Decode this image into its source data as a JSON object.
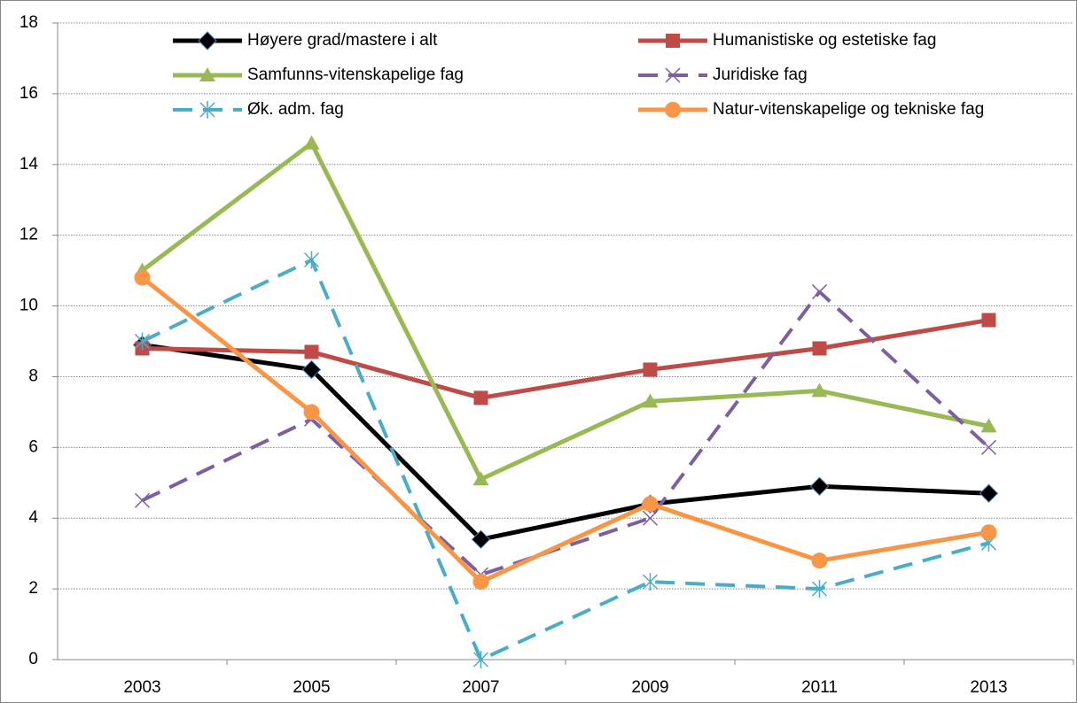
{
  "chart_data": {
    "type": "line",
    "categories": [
      "2003",
      "2005",
      "2007",
      "2009",
      "2011",
      "2013"
    ],
    "series": [
      {
        "name": "Høyere grad/mastere i alt",
        "color": "#000000",
        "marker": "diamond",
        "dash": false,
        "values": [
          8.9,
          8.2,
          3.4,
          4.4,
          4.9,
          4.7
        ]
      },
      {
        "name": "Humanistiske og estetiske fag",
        "color": "#be4b48",
        "marker": "square",
        "dash": false,
        "values": [
          8.8,
          8.7,
          7.4,
          8.2,
          8.8,
          9.6
        ]
      },
      {
        "name": "Samfunns-vitenskapelige fag",
        "color": "#98b954",
        "marker": "triangle",
        "dash": false,
        "values": [
          11.0,
          14.6,
          5.1,
          7.3,
          7.6,
          6.6
        ]
      },
      {
        "name": "Juridiske fag",
        "color": "#7d5fa0",
        "marker": "x",
        "dash": true,
        "values": [
          4.5,
          6.8,
          2.4,
          4.0,
          10.4,
          6.0
        ]
      },
      {
        "name": "Øk. adm. fag",
        "color": "#4bacc6",
        "marker": "asterisk",
        "dash": true,
        "values": [
          9.0,
          11.3,
          0.0,
          2.2,
          2.0,
          3.3
        ]
      },
      {
        "name": "Natur-vitenskapelige  og tekniske fag",
        "color": "#f79646",
        "marker": "circle",
        "dash": false,
        "values": [
          10.8,
          7.0,
          2.2,
          4.4,
          2.8,
          3.6
        ]
      }
    ],
    "ylim": [
      0,
      18
    ],
    "yticks": [
      0,
      2,
      4,
      6,
      8,
      10,
      12,
      14,
      16,
      18
    ],
    "grid": true
  }
}
